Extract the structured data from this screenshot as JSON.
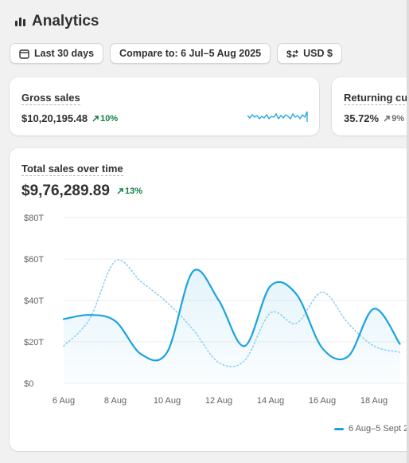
{
  "header": {
    "title": "Analytics",
    "icon": "bar-chart-icon"
  },
  "toolbar": {
    "date_range": "Last 30 days",
    "compare": "Compare to: 6 Jul–5 Aug 2025",
    "currency": "USD $"
  },
  "metrics": [
    {
      "label": "Gross sales",
      "value": "$10,20,195.48",
      "delta": "10%",
      "delta_direction": "up"
    },
    {
      "label": "Returning cus",
      "value": "35.72%",
      "delta": "9%",
      "delta_direction": "up"
    }
  ],
  "main_chart": {
    "label": "Total sales over time",
    "value": "$9,76,289.89",
    "delta": "13%",
    "delta_direction": "up"
  },
  "colors": {
    "accent": "#1aa3e0",
    "comparison": "#8fd0ee",
    "positive": "#108043"
  },
  "chart_data": {
    "type": "line",
    "title": "Total sales over time",
    "ylim": [
      0,
      80
    ],
    "yticks": [
      "$0",
      "$20T",
      "$40T",
      "$60T",
      "$80T"
    ],
    "ytick_values": [
      0,
      20,
      40,
      60,
      80
    ],
    "grid": true,
    "x": [
      6,
      7,
      8,
      9,
      10,
      11,
      12,
      13,
      14,
      15,
      16,
      17,
      18,
      19
    ],
    "xticks": [
      "6 Aug",
      "8 Aug",
      "10 Aug",
      "12 Aug",
      "14 Aug",
      "16 Aug",
      "18 Aug"
    ],
    "xtick_values": [
      6,
      8,
      10,
      12,
      14,
      16,
      18
    ],
    "series": [
      {
        "name": "6 Aug–5 Sept 2",
        "style": "solid",
        "values": [
          31,
          33,
          30,
          14,
          15,
          54,
          40,
          18,
          47,
          43,
          17,
          13,
          36,
          19
        ]
      },
      {
        "style": "dotted",
        "values": [
          18,
          31,
          59,
          49,
          39,
          26,
          10,
          11,
          34,
          29,
          44,
          29,
          18,
          15
        ]
      }
    ],
    "legend": [
      {
        "label": "6 Aug–5 Sept 2"
      }
    ],
    "legend_position": "bottom-right"
  }
}
